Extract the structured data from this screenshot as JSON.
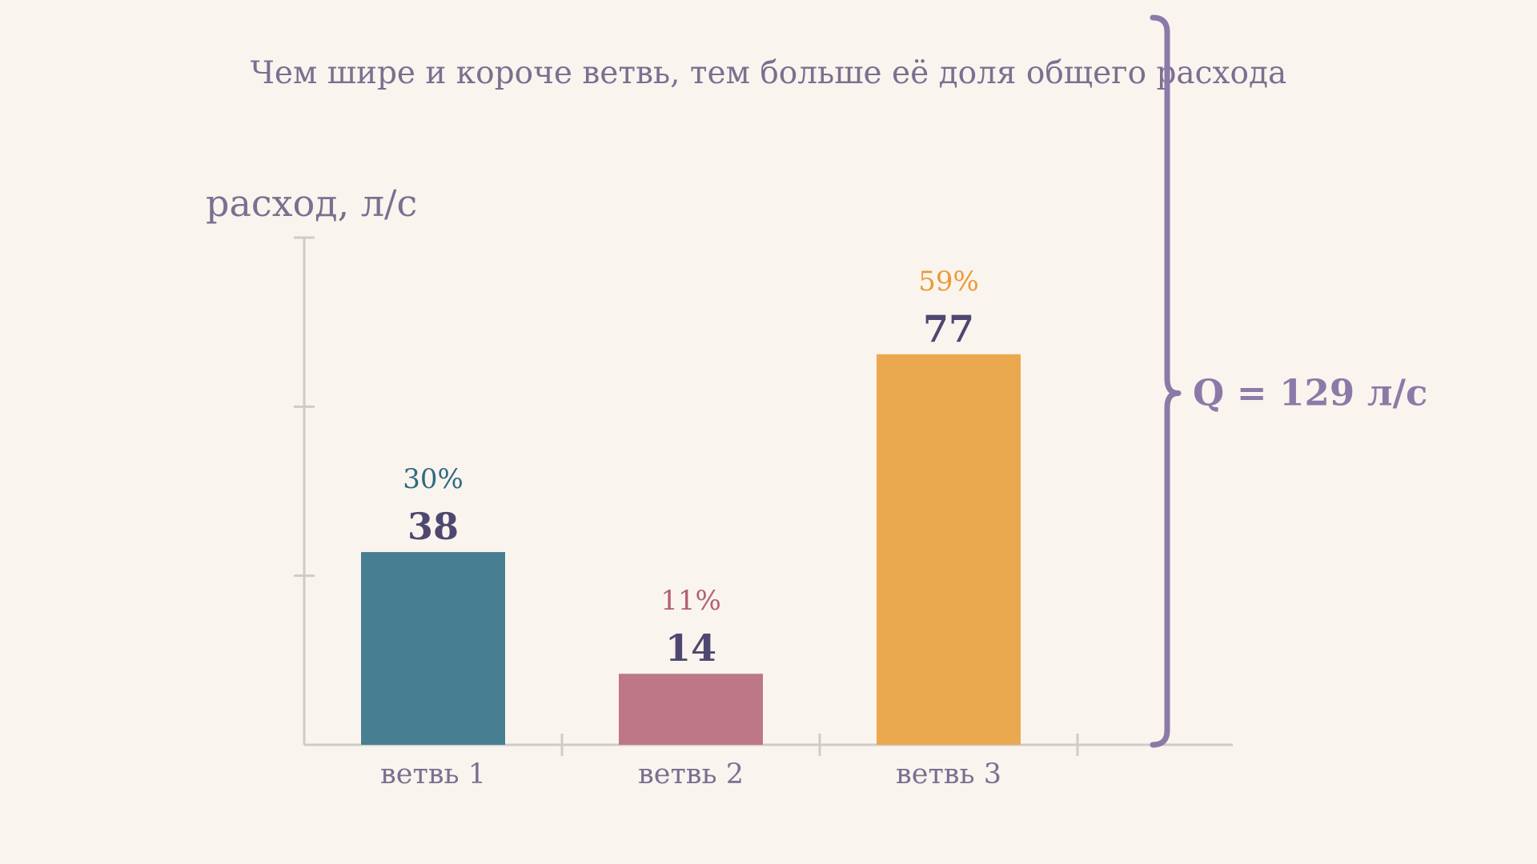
{
  "subtitle": "Чем шире и короче ветвь, тем больше её доля общего расхода",
  "total_label": "Q = 129 л/с",
  "colors": {
    "background": "#faf4ee",
    "axis": "#d0cbc6",
    "text": "#7a7090",
    "value_text": "#4e4870",
    "brace": "#8b7aa8"
  },
  "chart_data": {
    "type": "bar",
    "title": "",
    "xlabel": "",
    "ylabel": "расход, л/с",
    "ylim": [
      0,
      100
    ],
    "grid": false,
    "categories": [
      "ветвь 1",
      "ветвь 2",
      "ветвь 3"
    ],
    "values": [
      38,
      14,
      77
    ],
    "value_labels": [
      "38",
      "14",
      "77"
    ],
    "percent_labels": [
      "30%",
      "11%",
      "59%"
    ],
    "bar_colors": [
      "#477e91",
      "#bd7787",
      "#eaa94f"
    ],
    "percent_colors": [
      "#2f6a82",
      "#b25f78",
      "#ea9a35"
    ]
  }
}
